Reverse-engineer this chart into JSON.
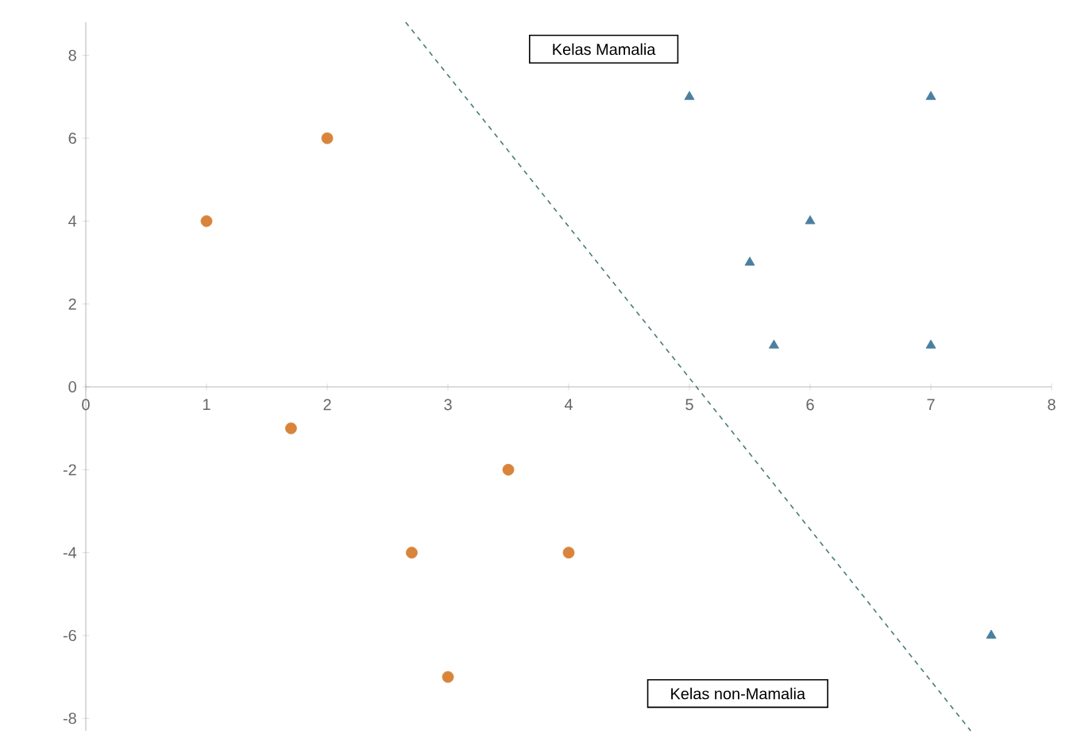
{
  "chart_data": {
    "type": "scatter",
    "xlim": [
      0,
      8
    ],
    "ylim": [
      -8.3,
      8.8
    ],
    "xticks": [
      0,
      1,
      2,
      3,
      4,
      5,
      6,
      7,
      8
    ],
    "yticks": [
      -8,
      -6,
      -4,
      -2,
      0,
      2,
      4,
      6,
      8
    ],
    "series": [
      {
        "marker": "circle",
        "color": "#d9843b",
        "x": [
          1,
          2,
          1.7,
          3.5,
          2.7,
          4,
          3
        ],
        "values": [
          4,
          6,
          -1,
          -2,
          -4,
          -4,
          -7
        ]
      },
      {
        "marker": "triangle",
        "color": "#4a7fa0",
        "x": [
          5,
          7,
          5.5,
          6,
          5.7,
          7,
          7.5
        ],
        "values": [
          7,
          7,
          3,
          4,
          1,
          1,
          -6
        ]
      },
      {
        "type": "line",
        "marker": "none",
        "line_style": "dashed",
        "color": "#4a7a78",
        "x": [
          2.65,
          7.33
        ],
        "values": [
          8.8,
          -8.3
        ]
      }
    ],
    "annotations": [
      "Kelas Mamalia",
      "Kelas non-Mamalia"
    ]
  }
}
